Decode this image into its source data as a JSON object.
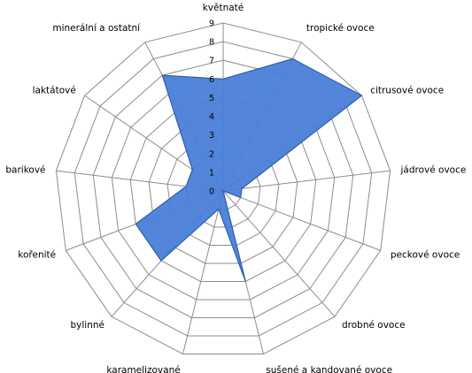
{
  "chart_data": {
    "type": "radar",
    "categories": [
      "květnaté",
      "tropické ovoce",
      "citrusové ovoce",
      "jádrové ovoce",
      "peckové ovoce",
      "drobné ovoce",
      "sušené a kandované  ovoce",
      "karamelizované",
      "bylinné",
      "kořenité",
      "barikové",
      "laktátové",
      "minerální a ostatní"
    ],
    "values": [
      6,
      8,
      9,
      1,
      1,
      0,
      5,
      1,
      5,
      5,
      2,
      2,
      7
    ],
    "rlim": [
      0,
      9
    ],
    "ticks": [
      "0",
      "1",
      "2",
      "3",
      "4",
      "5",
      "6",
      "7",
      "8",
      "9"
    ],
    "fill_color": "#4a7ed8",
    "stroke_color": "#2f5fae",
    "grid": true,
    "legend": "none"
  }
}
